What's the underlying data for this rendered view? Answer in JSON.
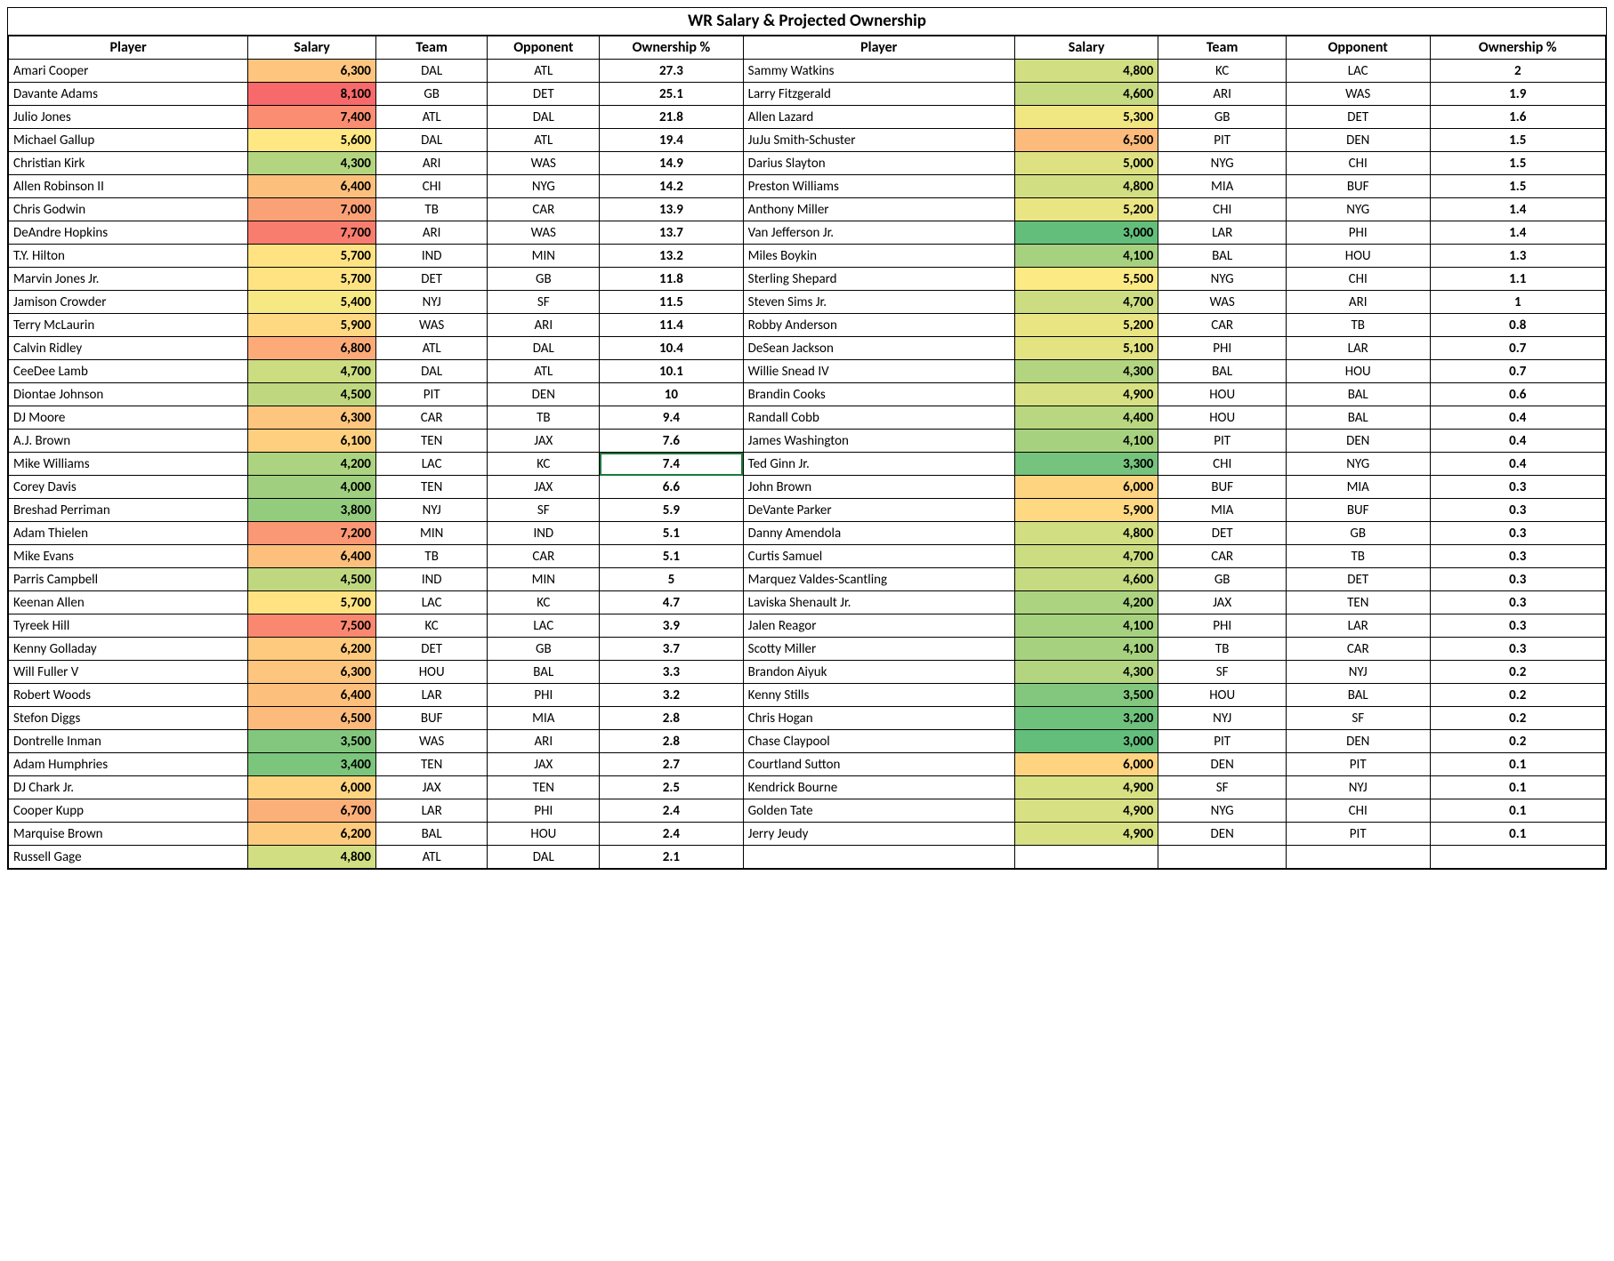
{
  "title": "WR Salary & Projected Ownership",
  "columns": [
    "Player",
    "Salary",
    "Team",
    "Opponent",
    "Ownership %",
    "Player",
    "Salary",
    "Team",
    "Opponent",
    "Ownership %"
  ],
  "salary_scale": {
    "min": 3000,
    "max": 8100
  },
  "heat_colors": {
    "low": "#63be7b",
    "mid": "#ffeb84",
    "high": "#f8696b"
  },
  "selected_cell": {
    "row": 17,
    "col": 4
  },
  "rows": [
    {
      "l": {
        "p": "Amari Cooper",
        "s": 6300,
        "t": "DAL",
        "o": "ATL",
        "own": 27.3
      },
      "r": {
        "p": "Sammy Watkins",
        "s": 4800,
        "t": "KC",
        "o": "LAC",
        "own": 2
      }
    },
    {
      "l": {
        "p": "Davante Adams",
        "s": 8100,
        "t": "GB",
        "o": "DET",
        "own": 25.1
      },
      "r": {
        "p": "Larry Fitzgerald",
        "s": 4600,
        "t": "ARI",
        "o": "WAS",
        "own": 1.9
      }
    },
    {
      "l": {
        "p": "Julio Jones",
        "s": 7400,
        "t": "ATL",
        "o": "DAL",
        "own": 21.8
      },
      "r": {
        "p": "Allen Lazard",
        "s": 5300,
        "t": "GB",
        "o": "DET",
        "own": 1.6
      }
    },
    {
      "l": {
        "p": "Michael Gallup",
        "s": 5600,
        "t": "DAL",
        "o": "ATL",
        "own": 19.4
      },
      "r": {
        "p": "JuJu Smith-Schuster",
        "s": 6500,
        "t": "PIT",
        "o": "DEN",
        "own": 1.5
      }
    },
    {
      "l": {
        "p": "Christian Kirk",
        "s": 4300,
        "t": "ARI",
        "o": "WAS",
        "own": 14.9
      },
      "r": {
        "p": "Darius Slayton",
        "s": 5000,
        "t": "NYG",
        "o": "CHI",
        "own": 1.5
      }
    },
    {
      "l": {
        "p": "Allen Robinson II",
        "s": 6400,
        "t": "CHI",
        "o": "NYG",
        "own": 14.2
      },
      "r": {
        "p": "Preston Williams",
        "s": 4800,
        "t": "MIA",
        "o": "BUF",
        "own": 1.5
      }
    },
    {
      "l": {
        "p": "Chris Godwin",
        "s": 7000,
        "t": "TB",
        "o": "CAR",
        "own": 13.9
      },
      "r": {
        "p": "Anthony Miller",
        "s": 5200,
        "t": "CHI",
        "o": "NYG",
        "own": 1.4
      }
    },
    {
      "l": {
        "p": "DeAndre Hopkins",
        "s": 7700,
        "t": "ARI",
        "o": "WAS",
        "own": 13.7
      },
      "r": {
        "p": "Van Jefferson Jr.",
        "s": 3000,
        "t": "LAR",
        "o": "PHI",
        "own": 1.4
      }
    },
    {
      "l": {
        "p": "T.Y. Hilton",
        "s": 5700,
        "t": "IND",
        "o": "MIN",
        "own": 13.2
      },
      "r": {
        "p": "Miles Boykin",
        "s": 4100,
        "t": "BAL",
        "o": "HOU",
        "own": 1.3
      }
    },
    {
      "l": {
        "p": "Marvin Jones Jr.",
        "s": 5700,
        "t": "DET",
        "o": "GB",
        "own": 11.8
      },
      "r": {
        "p": "Sterling Shepard",
        "s": 5500,
        "t": "NYG",
        "o": "CHI",
        "own": 1.1
      }
    },
    {
      "l": {
        "p": "Jamison Crowder",
        "s": 5400,
        "t": "NYJ",
        "o": "SF",
        "own": 11.5
      },
      "r": {
        "p": "Steven Sims Jr.",
        "s": 4700,
        "t": "WAS",
        "o": "ARI",
        "own": 1
      }
    },
    {
      "l": {
        "p": "Terry McLaurin",
        "s": 5900,
        "t": "WAS",
        "o": "ARI",
        "own": 11.4
      },
      "r": {
        "p": "Robby Anderson",
        "s": 5200,
        "t": "CAR",
        "o": "TB",
        "own": 0.8
      }
    },
    {
      "l": {
        "p": "Calvin Ridley",
        "s": 6800,
        "t": "ATL",
        "o": "DAL",
        "own": 10.4
      },
      "r": {
        "p": "DeSean Jackson",
        "s": 5100,
        "t": "PHI",
        "o": "LAR",
        "own": 0.7
      }
    },
    {
      "l": {
        "p": "CeeDee Lamb",
        "s": 4700,
        "t": "DAL",
        "o": "ATL",
        "own": 10.1
      },
      "r": {
        "p": "Willie Snead IV",
        "s": 4300,
        "t": "BAL",
        "o": "HOU",
        "own": 0.7
      }
    },
    {
      "l": {
        "p": "Diontae Johnson",
        "s": 4500,
        "t": "PIT",
        "o": "DEN",
        "own": 10
      },
      "r": {
        "p": "Brandin Cooks",
        "s": 4900,
        "t": "HOU",
        "o": "BAL",
        "own": 0.6
      }
    },
    {
      "l": {
        "p": "DJ Moore",
        "s": 6300,
        "t": "CAR",
        "o": "TB",
        "own": 9.4
      },
      "r": {
        "p": "Randall Cobb",
        "s": 4400,
        "t": "HOU",
        "o": "BAL",
        "own": 0.4
      }
    },
    {
      "l": {
        "p": "A.J. Brown",
        "s": 6100,
        "t": "TEN",
        "o": "JAX",
        "own": 7.6
      },
      "r": {
        "p": "James Washington",
        "s": 4100,
        "t": "PIT",
        "o": "DEN",
        "own": 0.4
      }
    },
    {
      "l": {
        "p": "Mike Williams",
        "s": 4200,
        "t": "LAC",
        "o": "KC",
        "own": 7.4
      },
      "r": {
        "p": "Ted Ginn Jr.",
        "s": 3300,
        "t": "CHI",
        "o": "NYG",
        "own": 0.4
      }
    },
    {
      "l": {
        "p": "Corey Davis",
        "s": 4000,
        "t": "TEN",
        "o": "JAX",
        "own": 6.6
      },
      "r": {
        "p": "John Brown",
        "s": 6000,
        "t": "BUF",
        "o": "MIA",
        "own": 0.3
      }
    },
    {
      "l": {
        "p": "Breshad Perriman",
        "s": 3800,
        "t": "NYJ",
        "o": "SF",
        "own": 5.9
      },
      "r": {
        "p": "DeVante Parker",
        "s": 5900,
        "t": "MIA",
        "o": "BUF",
        "own": 0.3
      }
    },
    {
      "l": {
        "p": "Adam Thielen",
        "s": 7200,
        "t": "MIN",
        "o": "IND",
        "own": 5.1
      },
      "r": {
        "p": "Danny Amendola",
        "s": 4800,
        "t": "DET",
        "o": "GB",
        "own": 0.3
      }
    },
    {
      "l": {
        "p": "Mike Evans",
        "s": 6400,
        "t": "TB",
        "o": "CAR",
        "own": 5.1
      },
      "r": {
        "p": "Curtis Samuel",
        "s": 4700,
        "t": "CAR",
        "o": "TB",
        "own": 0.3
      }
    },
    {
      "l": {
        "p": "Parris Campbell",
        "s": 4500,
        "t": "IND",
        "o": "MIN",
        "own": 5
      },
      "r": {
        "p": "Marquez Valdes-Scantling",
        "s": 4600,
        "t": "GB",
        "o": "DET",
        "own": 0.3
      }
    },
    {
      "l": {
        "p": "Keenan Allen",
        "s": 5700,
        "t": "LAC",
        "o": "KC",
        "own": 4.7
      },
      "r": {
        "p": "Laviska Shenault Jr.",
        "s": 4200,
        "t": "JAX",
        "o": "TEN",
        "own": 0.3
      }
    },
    {
      "l": {
        "p": "Tyreek Hill",
        "s": 7500,
        "t": "KC",
        "o": "LAC",
        "own": 3.9
      },
      "r": {
        "p": "Jalen Reagor",
        "s": 4100,
        "t": "PHI",
        "o": "LAR",
        "own": 0.3
      }
    },
    {
      "l": {
        "p": "Kenny Golladay",
        "s": 6200,
        "t": "DET",
        "o": "GB",
        "own": 3.7
      },
      "r": {
        "p": "Scotty Miller",
        "s": 4100,
        "t": "TB",
        "o": "CAR",
        "own": 0.3
      }
    },
    {
      "l": {
        "p": "Will Fuller V",
        "s": 6300,
        "t": "HOU",
        "o": "BAL",
        "own": 3.3
      },
      "r": {
        "p": "Brandon Aiyuk",
        "s": 4300,
        "t": "SF",
        "o": "NYJ",
        "own": 0.2
      }
    },
    {
      "l": {
        "p": "Robert Woods",
        "s": 6400,
        "t": "LAR",
        "o": "PHI",
        "own": 3.2
      },
      "r": {
        "p": "Kenny Stills",
        "s": 3500,
        "t": "HOU",
        "o": "BAL",
        "own": 0.2
      }
    },
    {
      "l": {
        "p": "Stefon Diggs",
        "s": 6500,
        "t": "BUF",
        "o": "MIA",
        "own": 2.8
      },
      "r": {
        "p": "Chris Hogan",
        "s": 3200,
        "t": "NYJ",
        "o": "SF",
        "own": 0.2
      }
    },
    {
      "l": {
        "p": "Dontrelle Inman",
        "s": 3500,
        "t": "WAS",
        "o": "ARI",
        "own": 2.8
      },
      "r": {
        "p": "Chase Claypool",
        "s": 3000,
        "t": "PIT",
        "o": "DEN",
        "own": 0.2
      }
    },
    {
      "l": {
        "p": "Adam Humphries",
        "s": 3400,
        "t": "TEN",
        "o": "JAX",
        "own": 2.7
      },
      "r": {
        "p": "Courtland Sutton",
        "s": 6000,
        "t": "DEN",
        "o": "PIT",
        "own": 0.1
      }
    },
    {
      "l": {
        "p": "DJ Chark Jr.",
        "s": 6000,
        "t": "JAX",
        "o": "TEN",
        "own": 2.5
      },
      "r": {
        "p": "Kendrick Bourne",
        "s": 4900,
        "t": "SF",
        "o": "NYJ",
        "own": 0.1
      }
    },
    {
      "l": {
        "p": "Cooper Kupp",
        "s": 6700,
        "t": "LAR",
        "o": "PHI",
        "own": 2.4
      },
      "r": {
        "p": "Golden Tate",
        "s": 4900,
        "t": "NYG",
        "o": "CHI",
        "own": 0.1
      }
    },
    {
      "l": {
        "p": "Marquise Brown",
        "s": 6200,
        "t": "BAL",
        "o": "HOU",
        "own": 2.4
      },
      "r": {
        "p": "Jerry Jeudy",
        "s": 4900,
        "t": "DEN",
        "o": "PIT",
        "own": 0.1
      }
    },
    {
      "l": {
        "p": "Russell Gage",
        "s": 4800,
        "t": "ATL",
        "o": "DAL",
        "own": 2.1
      },
      "r": null
    }
  ]
}
